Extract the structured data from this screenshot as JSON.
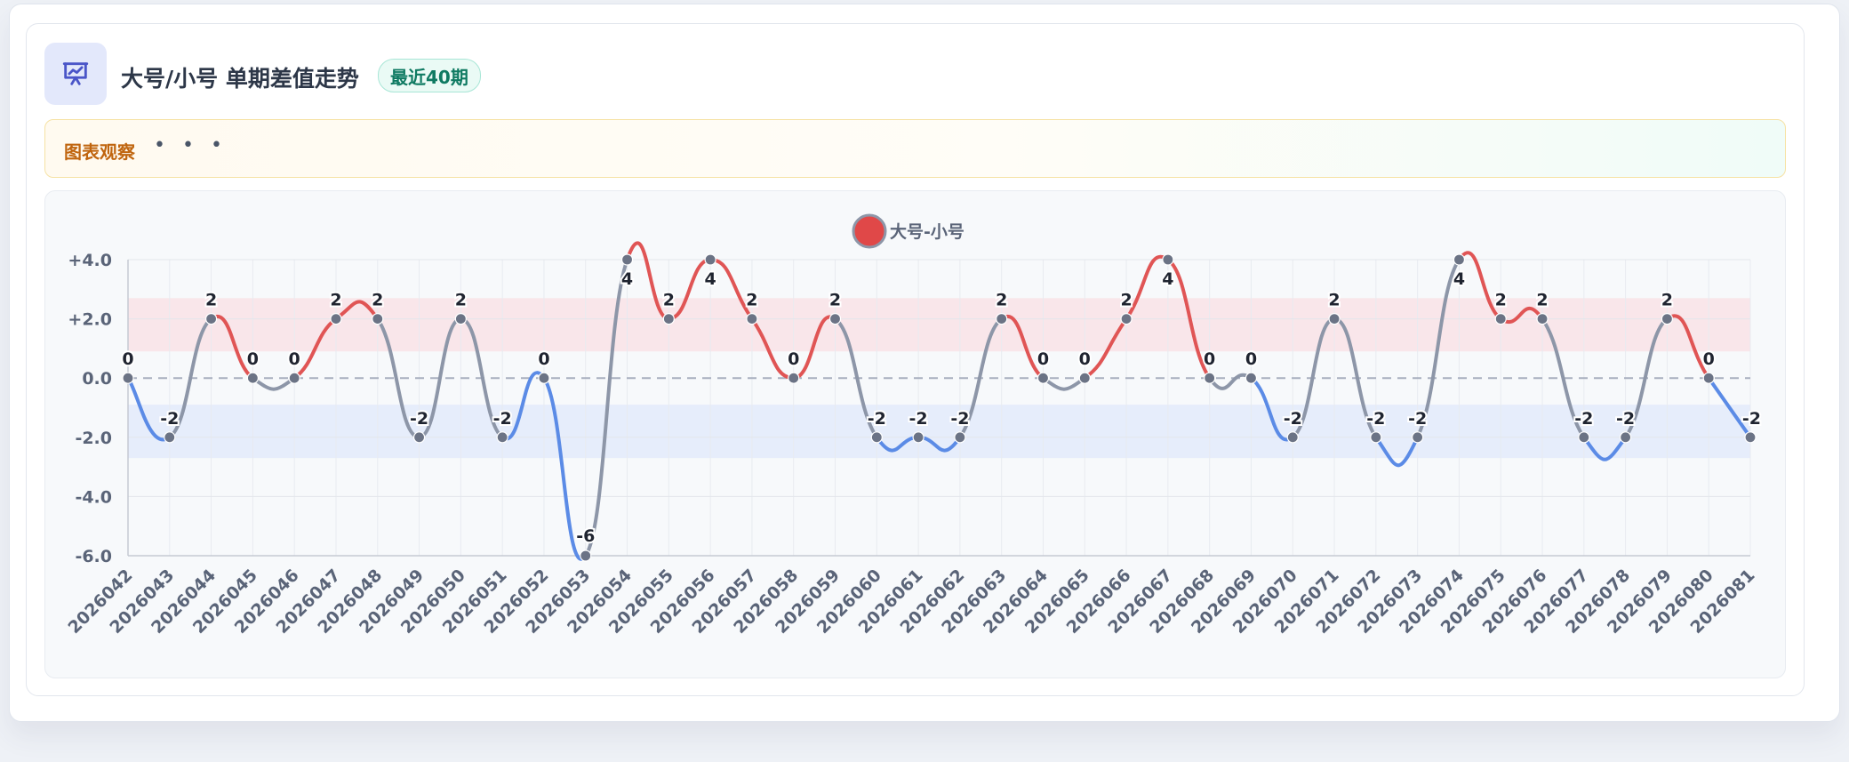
{
  "header": {
    "title": "大号/小号 单期差值走势",
    "badge": "最近40期",
    "icon": "presentation-chart-icon"
  },
  "observation": {
    "label": "图表观察",
    "dots": "• • •"
  },
  "colors": {
    "positive": "#e05555",
    "negative": "#5b8be6",
    "neutral": "#8d96a8",
    "marker": "#6b7385",
    "band_positive": "#f9e3e6",
    "band_negative": "#e3ebfa"
  },
  "chart_data": {
    "type": "line",
    "legend": {
      "position": "top-center",
      "entries": [
        "大号-小号"
      ]
    },
    "series": [
      {
        "name": "大号-小号",
        "values": [
          0,
          -2,
          2,
          0,
          0,
          2,
          2,
          -2,
          2,
          -2,
          0,
          -6,
          4,
          2,
          4,
          2,
          0,
          2,
          -2,
          -2,
          -2,
          2,
          0,
          0,
          2,
          4,
          0,
          0,
          -2,
          2,
          -2,
          -2,
          4,
          2,
          2,
          -2,
          -2,
          2,
          0,
          -2
        ]
      }
    ],
    "x": [
      "2026042",
      "2026043",
      "2026044",
      "2026045",
      "2026046",
      "2026047",
      "2026048",
      "2026049",
      "2026050",
      "2026051",
      "2026052",
      "2026053",
      "2026054",
      "2026055",
      "2026056",
      "2026057",
      "2026058",
      "2026059",
      "2026060",
      "2026061",
      "2026062",
      "2026063",
      "2026064",
      "2026065",
      "2026066",
      "2026067",
      "2026068",
      "2026069",
      "2026070",
      "2026071",
      "2026072",
      "2026073",
      "2026074",
      "2026075",
      "2026076",
      "2026077",
      "2026078",
      "2026079",
      "2026080",
      "2026081"
    ],
    "y_ticks": [
      "+4.0",
      "+2.0",
      "0.0",
      "-2.0",
      "-4.0",
      "-6.0"
    ],
    "y_tick_values": [
      4,
      2,
      0,
      -2,
      -4,
      -6
    ],
    "ylim": [
      -6,
      4
    ],
    "bands": [
      {
        "from": 0.9,
        "to": 2.7,
        "color": "#f9e3e6"
      },
      {
        "from": -0.9,
        "to": -2.7,
        "color": "#e3ebfa"
      }
    ],
    "zero_line": "dashed",
    "grid": true,
    "data_labels": true
  }
}
